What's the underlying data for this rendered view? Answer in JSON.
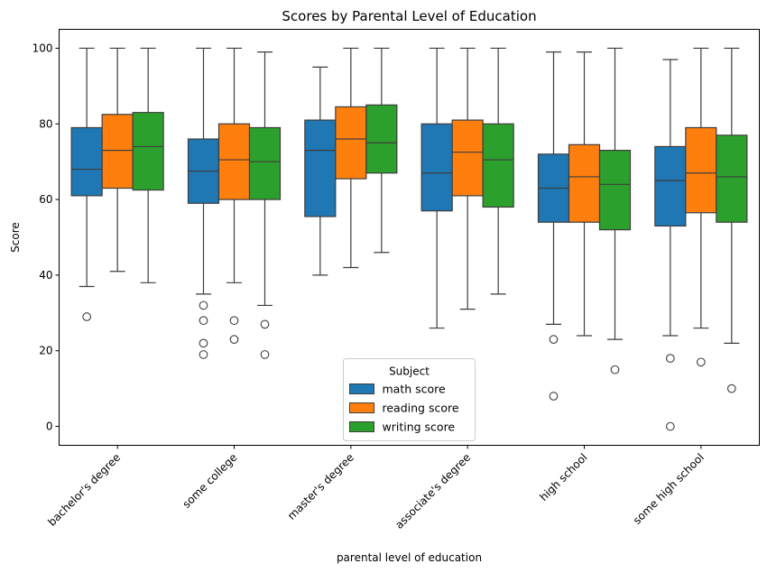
{
  "chart_data": {
    "type": "boxplot",
    "title": "Scores by Parental Level of Education",
    "xlabel": "parental level of education",
    "ylabel": "Score",
    "ylim": [
      -5,
      105
    ],
    "yticks": [
      0,
      20,
      40,
      60,
      80,
      100
    ],
    "categories": [
      "bachelor's degree",
      "some college",
      "master's degree",
      "associate's degree",
      "high school",
      "some high school"
    ],
    "legend": {
      "title": "Subject",
      "placement": "lower-center"
    },
    "series": [
      {
        "name": "math score",
        "color": "#1f77b4",
        "boxes": [
          {
            "whislo": 37,
            "q1": 61,
            "med": 68,
            "q3": 79,
            "whishi": 100,
            "fliers": [
              29
            ]
          },
          {
            "whislo": 35,
            "q1": 59,
            "med": 67.5,
            "q3": 76,
            "whishi": 100,
            "fliers": [
              32,
              28,
              22,
              19
            ]
          },
          {
            "whislo": 40,
            "q1": 55.5,
            "med": 73,
            "q3": 81,
            "whishi": 95,
            "fliers": []
          },
          {
            "whislo": 26,
            "q1": 57,
            "med": 67,
            "q3": 80,
            "whishi": 100,
            "fliers": []
          },
          {
            "whislo": 27,
            "q1": 54,
            "med": 63,
            "q3": 72,
            "whishi": 99,
            "fliers": [
              23,
              8
            ]
          },
          {
            "whislo": 24,
            "q1": 53,
            "med": 65,
            "q3": 74,
            "whishi": 97,
            "fliers": [
              18,
              0
            ]
          }
        ]
      },
      {
        "name": "reading score",
        "color": "#ff7f0e",
        "boxes": [
          {
            "whislo": 41,
            "q1": 63,
            "med": 73,
            "q3": 82.5,
            "whishi": 100,
            "fliers": []
          },
          {
            "whislo": 38,
            "q1": 60,
            "med": 70.5,
            "q3": 80,
            "whishi": 100,
            "fliers": [
              28,
              23
            ]
          },
          {
            "whislo": 42,
            "q1": 65.5,
            "med": 76,
            "q3": 84.5,
            "whishi": 100,
            "fliers": []
          },
          {
            "whislo": 31,
            "q1": 61,
            "med": 72.5,
            "q3": 81,
            "whishi": 100,
            "fliers": []
          },
          {
            "whislo": 24,
            "q1": 54,
            "med": 66,
            "q3": 74.5,
            "whishi": 99,
            "fliers": []
          },
          {
            "whislo": 26,
            "q1": 56.5,
            "med": 67,
            "q3": 79,
            "whishi": 100,
            "fliers": [
              17
            ]
          }
        ]
      },
      {
        "name": "writing score",
        "color": "#2ca02c",
        "boxes": [
          {
            "whislo": 38,
            "q1": 62.5,
            "med": 74,
            "q3": 83,
            "whishi": 100,
            "fliers": []
          },
          {
            "whislo": 32,
            "q1": 60,
            "med": 70,
            "q3": 79,
            "whishi": 99,
            "fliers": [
              27,
              19
            ]
          },
          {
            "whislo": 46,
            "q1": 67,
            "med": 75,
            "q3": 85,
            "whishi": 100,
            "fliers": []
          },
          {
            "whislo": 35,
            "q1": 58,
            "med": 70.5,
            "q3": 80,
            "whishi": 100,
            "fliers": []
          },
          {
            "whislo": 23,
            "q1": 52,
            "med": 64,
            "q3": 73,
            "whishi": 100,
            "fliers": [
              15
            ]
          },
          {
            "whislo": 22,
            "q1": 54,
            "med": 66,
            "q3": 77,
            "whishi": 100,
            "fliers": [
              10
            ]
          }
        ]
      }
    ]
  }
}
